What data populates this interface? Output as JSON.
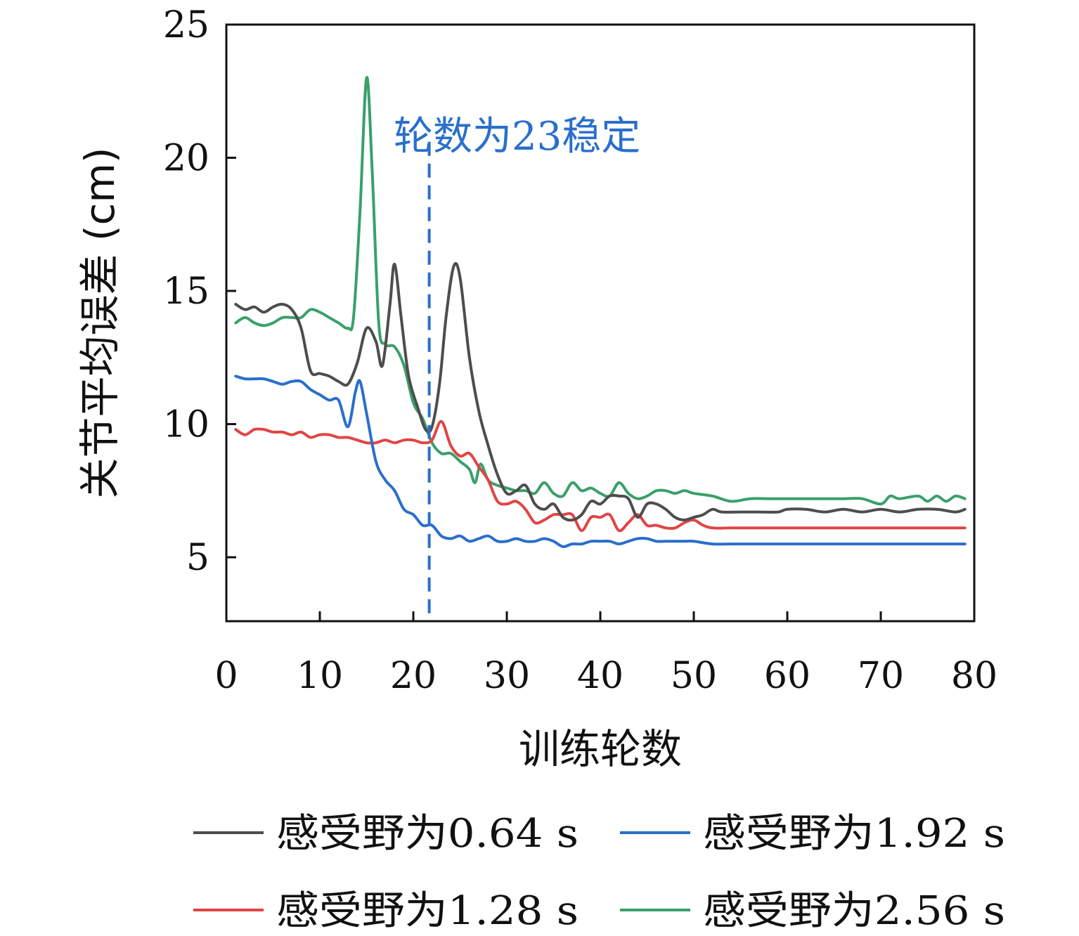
{
  "chart_data": {
    "type": "line",
    "title": "",
    "xlabel": "训练轮数",
    "ylabel": "关节平均误差 (cm)",
    "xlim": [
      0,
      80
    ],
    "ylim": [
      2.6,
      25
    ],
    "xticks": [
      0,
      10,
      20,
      30,
      40,
      50,
      60,
      70,
      80
    ],
    "yticks": [
      5,
      10,
      15,
      20,
      25
    ],
    "grid": false,
    "legend": "bottom",
    "annotation": {
      "text": "轮数为23稳定",
      "x": 21.7,
      "color": "#2a6fcb",
      "y_top": 20.6,
      "y_bottom": 2.8
    },
    "series": [
      {
        "name": "感受野为0.64 s",
        "color": "#4d4d4d",
        "points": [
          [
            1,
            14.5
          ],
          [
            2,
            14.3
          ],
          [
            3,
            14.4
          ],
          [
            4,
            14.2
          ],
          [
            5,
            14.4
          ],
          [
            6,
            14.5
          ],
          [
            7,
            14.3
          ],
          [
            8,
            13.6
          ],
          [
            9,
            12.0
          ],
          [
            10,
            11.9
          ],
          [
            11,
            11.8
          ],
          [
            12,
            11.6
          ],
          [
            13,
            11.5
          ],
          [
            14,
            12.3
          ],
          [
            15,
            13.6
          ],
          [
            16,
            13.1
          ],
          [
            16.7,
            12.2
          ],
          [
            17.5,
            14.5
          ],
          [
            18,
            16.0
          ],
          [
            18.7,
            14.0
          ],
          [
            19.5,
            11.8
          ],
          [
            20.5,
            10.6
          ],
          [
            21.3,
            9.8
          ],
          [
            22,
            9.9
          ],
          [
            22.8,
            11.5
          ],
          [
            23.5,
            14.0
          ],
          [
            24.3,
            15.9
          ],
          [
            25,
            15.5
          ],
          [
            26,
            12.5
          ],
          [
            27,
            10.5
          ],
          [
            28,
            9.2
          ],
          [
            29,
            8.1
          ],
          [
            30,
            7.4
          ],
          [
            31,
            7.5
          ],
          [
            32,
            7.7
          ],
          [
            33,
            7.0
          ],
          [
            34,
            6.8
          ],
          [
            35,
            7.0
          ],
          [
            36,
            6.5
          ],
          [
            37,
            6.4
          ],
          [
            38,
            6.6
          ],
          [
            39,
            7.1
          ],
          [
            40,
            7.0
          ],
          [
            41,
            7.3
          ],
          [
            42,
            7.3
          ],
          [
            43,
            7.2
          ],
          [
            44,
            6.5
          ],
          [
            45,
            7.0
          ],
          [
            46,
            7.0
          ],
          [
            47,
            6.8
          ],
          [
            48,
            6.5
          ],
          [
            49,
            6.4
          ],
          [
            50,
            6.5
          ],
          [
            51,
            6.6
          ],
          [
            52,
            6.8
          ],
          [
            53,
            6.7
          ],
          [
            55,
            6.7
          ],
          [
            57,
            6.7
          ],
          [
            59,
            6.7
          ],
          [
            60,
            6.8
          ],
          [
            62,
            6.8
          ],
          [
            64,
            6.7
          ],
          [
            66,
            6.8
          ],
          [
            68,
            6.7
          ],
          [
            70,
            6.8
          ],
          [
            72,
            6.7
          ],
          [
            74,
            6.8
          ],
          [
            76,
            6.8
          ],
          [
            78,
            6.7
          ],
          [
            79,
            6.8
          ]
        ]
      },
      {
        "name": "感受野为1.28 s",
        "color": "#e04545",
        "points": [
          [
            1,
            9.8
          ],
          [
            2,
            9.6
          ],
          [
            3,
            9.8
          ],
          [
            4,
            9.8
          ],
          [
            5,
            9.7
          ],
          [
            6,
            9.7
          ],
          [
            7,
            9.6
          ],
          [
            8,
            9.7
          ],
          [
            9,
            9.5
          ],
          [
            10,
            9.6
          ],
          [
            11,
            9.6
          ],
          [
            12,
            9.5
          ],
          [
            13,
            9.5
          ],
          [
            14,
            9.4
          ],
          [
            15,
            9.3
          ],
          [
            16,
            9.3
          ],
          [
            17,
            9.4
          ],
          [
            18,
            9.3
          ],
          [
            19,
            9.4
          ],
          [
            20,
            9.4
          ],
          [
            21,
            9.3
          ],
          [
            22,
            9.4
          ],
          [
            23,
            10.1
          ],
          [
            24,
            9.2
          ],
          [
            25,
            8.8
          ],
          [
            26,
            8.9
          ],
          [
            27,
            8.4
          ],
          [
            28,
            7.9
          ],
          [
            29,
            7.1
          ],
          [
            30,
            7.0
          ],
          [
            31,
            7.1
          ],
          [
            32,
            6.8
          ],
          [
            33,
            6.3
          ],
          [
            34,
            6.4
          ],
          [
            35,
            6.6
          ],
          [
            36,
            6.6
          ],
          [
            37,
            6.6
          ],
          [
            38,
            6.0
          ],
          [
            39,
            6.5
          ],
          [
            40,
            6.5
          ],
          [
            41,
            6.6
          ],
          [
            42,
            6.0
          ],
          [
            43,
            6.3
          ],
          [
            44,
            6.6
          ],
          [
            45,
            6.2
          ],
          [
            46,
            6.2
          ],
          [
            47,
            6.1
          ],
          [
            48,
            6.1
          ],
          [
            49,
            6.3
          ],
          [
            50,
            6.4
          ],
          [
            51,
            6.2
          ],
          [
            52,
            6.1
          ],
          [
            54,
            6.1
          ],
          [
            56,
            6.1
          ],
          [
            58,
            6.1
          ],
          [
            60,
            6.1
          ],
          [
            62,
            6.1
          ],
          [
            64,
            6.1
          ],
          [
            66,
            6.1
          ],
          [
            68,
            6.1
          ],
          [
            70,
            6.1
          ],
          [
            72,
            6.1
          ],
          [
            74,
            6.1
          ],
          [
            76,
            6.1
          ],
          [
            78,
            6.1
          ],
          [
            79,
            6.1
          ]
        ]
      },
      {
        "name": "感受野为1.92 s",
        "color": "#2a6fcb",
        "points": [
          [
            1,
            11.8
          ],
          [
            2,
            11.7
          ],
          [
            3,
            11.7
          ],
          [
            4,
            11.7
          ],
          [
            5,
            11.6
          ],
          [
            6,
            11.5
          ],
          [
            7,
            11.6
          ],
          [
            8,
            11.6
          ],
          [
            9,
            11.3
          ],
          [
            10,
            11.1
          ],
          [
            11,
            10.9
          ],
          [
            12,
            10.9
          ],
          [
            13,
            9.9
          ],
          [
            13.8,
            11.2
          ],
          [
            14.3,
            11.6
          ],
          [
            15,
            10.4
          ],
          [
            16,
            8.6
          ],
          [
            17,
            7.9
          ],
          [
            18,
            7.5
          ],
          [
            19,
            6.8
          ],
          [
            20,
            6.6
          ],
          [
            21,
            6.2
          ],
          [
            22,
            6.2
          ],
          [
            23,
            5.8
          ],
          [
            24,
            5.7
          ],
          [
            25,
            5.8
          ],
          [
            26,
            5.6
          ],
          [
            27,
            5.7
          ],
          [
            28,
            5.8
          ],
          [
            29,
            5.6
          ],
          [
            30,
            5.6
          ],
          [
            31,
            5.7
          ],
          [
            32,
            5.6
          ],
          [
            33,
            5.6
          ],
          [
            34,
            5.7
          ],
          [
            35,
            5.6
          ],
          [
            36,
            5.4
          ],
          [
            37,
            5.5
          ],
          [
            38,
            5.5
          ],
          [
            39,
            5.6
          ],
          [
            40,
            5.6
          ],
          [
            41,
            5.6
          ],
          [
            42,
            5.5
          ],
          [
            43,
            5.6
          ],
          [
            44,
            5.7
          ],
          [
            45,
            5.7
          ],
          [
            46,
            5.6
          ],
          [
            47,
            5.6
          ],
          [
            48,
            5.6
          ],
          [
            49,
            5.6
          ],
          [
            50,
            5.6
          ],
          [
            52,
            5.5
          ],
          [
            54,
            5.5
          ],
          [
            56,
            5.5
          ],
          [
            58,
            5.5
          ],
          [
            60,
            5.5
          ],
          [
            62,
            5.5
          ],
          [
            64,
            5.5
          ],
          [
            66,
            5.5
          ],
          [
            68,
            5.5
          ],
          [
            70,
            5.5
          ],
          [
            72,
            5.5
          ],
          [
            74,
            5.5
          ],
          [
            76,
            5.5
          ],
          [
            78,
            5.5
          ],
          [
            79,
            5.5
          ]
        ]
      },
      {
        "name": "感受野为2.56 s",
        "color": "#3aa06a",
        "points": [
          [
            1,
            13.8
          ],
          [
            2,
            14.0
          ],
          [
            3,
            13.8
          ],
          [
            4,
            13.7
          ],
          [
            5,
            13.8
          ],
          [
            6,
            14.0
          ],
          [
            7,
            14.0
          ],
          [
            8,
            14.0
          ],
          [
            9,
            14.3
          ],
          [
            10,
            14.2
          ],
          [
            11,
            14.0
          ],
          [
            12,
            13.8
          ],
          [
            13,
            13.6
          ],
          [
            13.6,
            14.0
          ],
          [
            14.3,
            18.0
          ],
          [
            15,
            23.0
          ],
          [
            15.6,
            19.5
          ],
          [
            16.3,
            13.8
          ],
          [
            17,
            13.0
          ],
          [
            18,
            12.9
          ],
          [
            19,
            12.2
          ],
          [
            20,
            10.8
          ],
          [
            21,
            10.2
          ],
          [
            22,
            9.3
          ],
          [
            23,
            8.9
          ],
          [
            24,
            8.9
          ],
          [
            25,
            8.6
          ],
          [
            26,
            8.3
          ],
          [
            26.6,
            7.8
          ],
          [
            27.2,
            8.5
          ],
          [
            28,
            7.9
          ],
          [
            29,
            7.7
          ],
          [
            30,
            7.6
          ],
          [
            31,
            7.5
          ],
          [
            32,
            7.5
          ],
          [
            33,
            7.4
          ],
          [
            34,
            7.8
          ],
          [
            35,
            7.4
          ],
          [
            36,
            7.3
          ],
          [
            37,
            7.8
          ],
          [
            38,
            7.5
          ],
          [
            39,
            7.6
          ],
          [
            40,
            7.4
          ],
          [
            41,
            7.3
          ],
          [
            42,
            7.8
          ],
          [
            43,
            7.4
          ],
          [
            44,
            7.2
          ],
          [
            45,
            7.3
          ],
          [
            46,
            7.5
          ],
          [
            47,
            7.5
          ],
          [
            48,
            7.4
          ],
          [
            49,
            7.5
          ],
          [
            50,
            7.4
          ],
          [
            52,
            7.3
          ],
          [
            54,
            7.1
          ],
          [
            56,
            7.2
          ],
          [
            58,
            7.2
          ],
          [
            60,
            7.2
          ],
          [
            62,
            7.2
          ],
          [
            64,
            7.2
          ],
          [
            66,
            7.2
          ],
          [
            68,
            7.2
          ],
          [
            70,
            7.0
          ],
          [
            71,
            7.3
          ],
          [
            72,
            7.2
          ],
          [
            74,
            7.3
          ],
          [
            75,
            7.1
          ],
          [
            76,
            7.3
          ],
          [
            77,
            7.1
          ],
          [
            78,
            7.3
          ],
          [
            79,
            7.2
          ]
        ]
      }
    ]
  }
}
